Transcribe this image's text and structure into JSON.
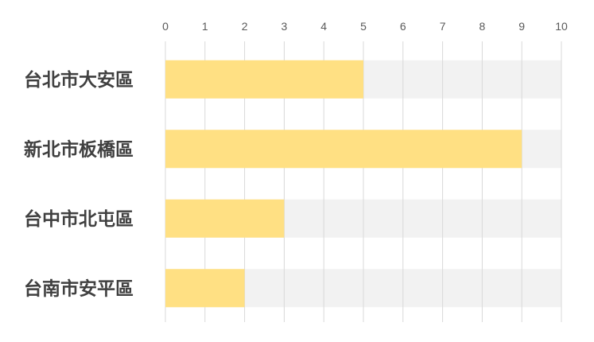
{
  "chart_data": {
    "type": "bar",
    "orientation": "horizontal",
    "categories": [
      "台北市大安區",
      "新北市板橋區",
      "台中市北屯區",
      "台南市安平區"
    ],
    "values": [
      5,
      9,
      3,
      2
    ],
    "xlim": [
      0,
      10
    ],
    "xticks": [
      "0",
      "1",
      "2",
      "3",
      "4",
      "5",
      "6",
      "7",
      "8",
      "9",
      "10"
    ],
    "x_axis_position": "top",
    "grid": true,
    "legend": "none",
    "colors": {
      "bar": "#FFE083",
      "track": "#F2F2F2",
      "grid": "#D9D9D9",
      "tick_text": "#595959",
      "category_text": "#404040"
    }
  }
}
